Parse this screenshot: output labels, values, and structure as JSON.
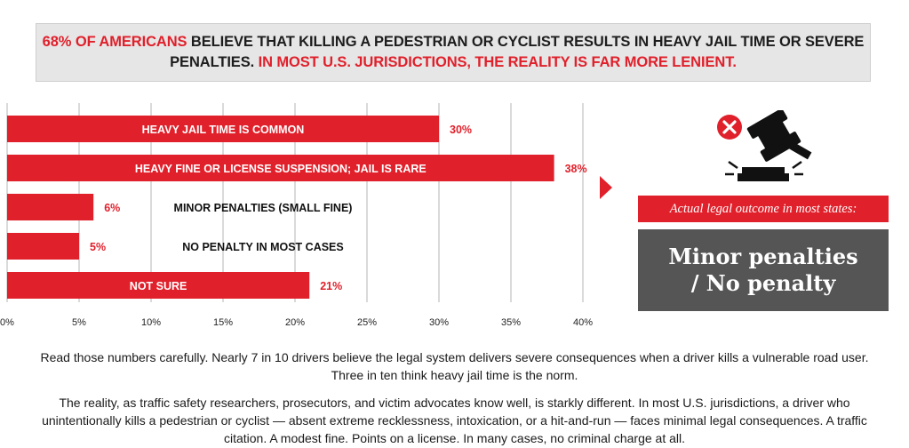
{
  "headline": {
    "part1": "68% OF AMERICANS",
    "part2": " BELIEVE THAT KILLING A PEDESTRIAN OR CYCLIST RESULTS IN HEAVY JAIL TIME OR SEVERE PENALTIES.",
    "part3": " IN MOST U.S. JURISDICTIONS, THE REALITY IS FAR MORE LENIENT."
  },
  "chart_data": {
    "type": "bar",
    "orientation": "horizontal",
    "title": "",
    "xlabel": "",
    "ylabel": "",
    "xlim": [
      0,
      40
    ],
    "grid": true,
    "x_ticks": [
      "0%",
      "5%",
      "10%",
      "15%",
      "20%",
      "25%",
      "30%",
      "35%",
      "40%"
    ],
    "tick_values": [
      0,
      5,
      10,
      15,
      20,
      25,
      30,
      35,
      40
    ],
    "categories": [
      "HEAVY JAIL TIME IS COMMON",
      "HEAVY FINE OR LICENSE SUSPENSION; JAIL IS RARE",
      "MINOR PENALTIES (SMALL FINE)",
      "NO PENALTY IN MOST CASES",
      "NOT SURE"
    ],
    "values": [
      30,
      38,
      6,
      5,
      21
    ],
    "value_labels": [
      "30%",
      "38%",
      "6%",
      "5%",
      "21%"
    ],
    "label_inside": [
      true,
      true,
      false,
      false,
      true
    ],
    "bar_color": "#e0202b"
  },
  "colors": {
    "accent": "#e0202b",
    "dark_panel": "#555555",
    "grid": "#b5b5b5"
  },
  "outcome": {
    "icon": "gavel-icon",
    "status_icon": "x-circle-icon",
    "label": "Actual legal outcome in most states:",
    "line1": "Minor penalties",
    "line2": "/ No penalty"
  },
  "body": {
    "paragraph1": "Read those numbers carefully. Nearly 7 in 10 drivers believe the legal system delivers severe consequences when a driver kills a vulnerable road user. Three in ten think heavy jail time is the norm.",
    "paragraph2": "The reality, as traffic safety researchers, prosecutors, and victim advocates know well, is starkly different. In most U.S. jurisdictions, a driver who unintentionally kills a pedestrian or cyclist — absent extreme recklessness, intoxication, or a hit-and-run — faces minimal legal consequences. A traffic citation. A modest fine. Points on a license. In many cases, no criminal charge at all."
  }
}
